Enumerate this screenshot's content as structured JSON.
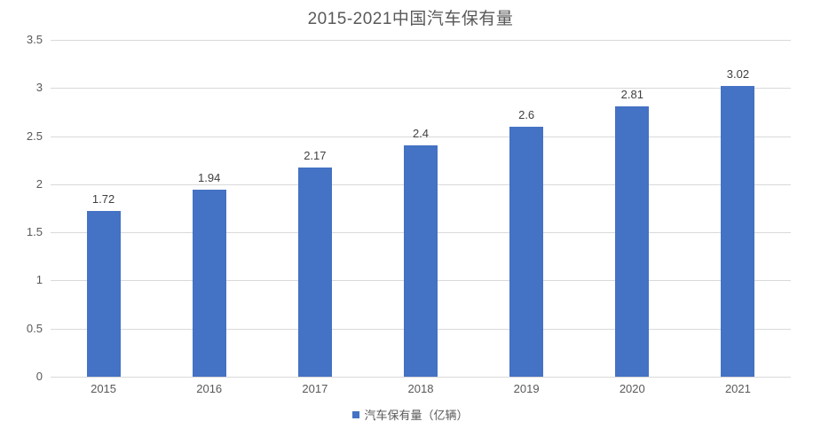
{
  "chart_data": {
    "type": "bar",
    "title": "2015-2021中国汽车保有量",
    "categories": [
      "2015",
      "2016",
      "2017",
      "2018",
      "2019",
      "2020",
      "2021"
    ],
    "series": [
      {
        "name": "汽车保有量（亿辆）",
        "values": [
          1.72,
          1.94,
          2.17,
          2.4,
          2.6,
          2.81,
          3.02
        ],
        "labels": [
          "1.72",
          "1.94",
          "2.17",
          "2.4",
          "2.6",
          "2.81",
          "3.02"
        ],
        "color": "#4472C4"
      }
    ],
    "xlabel": "",
    "ylabel": "",
    "ylim": [
      0,
      3.5
    ],
    "yticks": [
      "0",
      "0.5",
      "1",
      "1.5",
      "2",
      "2.5",
      "3",
      "3.5"
    ],
    "grid": "horizontal",
    "legend_position": "bottom"
  },
  "colors": {
    "bar": "#4472C4",
    "gridline": "#D9D9D9",
    "axis_text": "#595959",
    "data_label": "#404040",
    "title_text": "#595959",
    "background": "#FFFFFF"
  }
}
